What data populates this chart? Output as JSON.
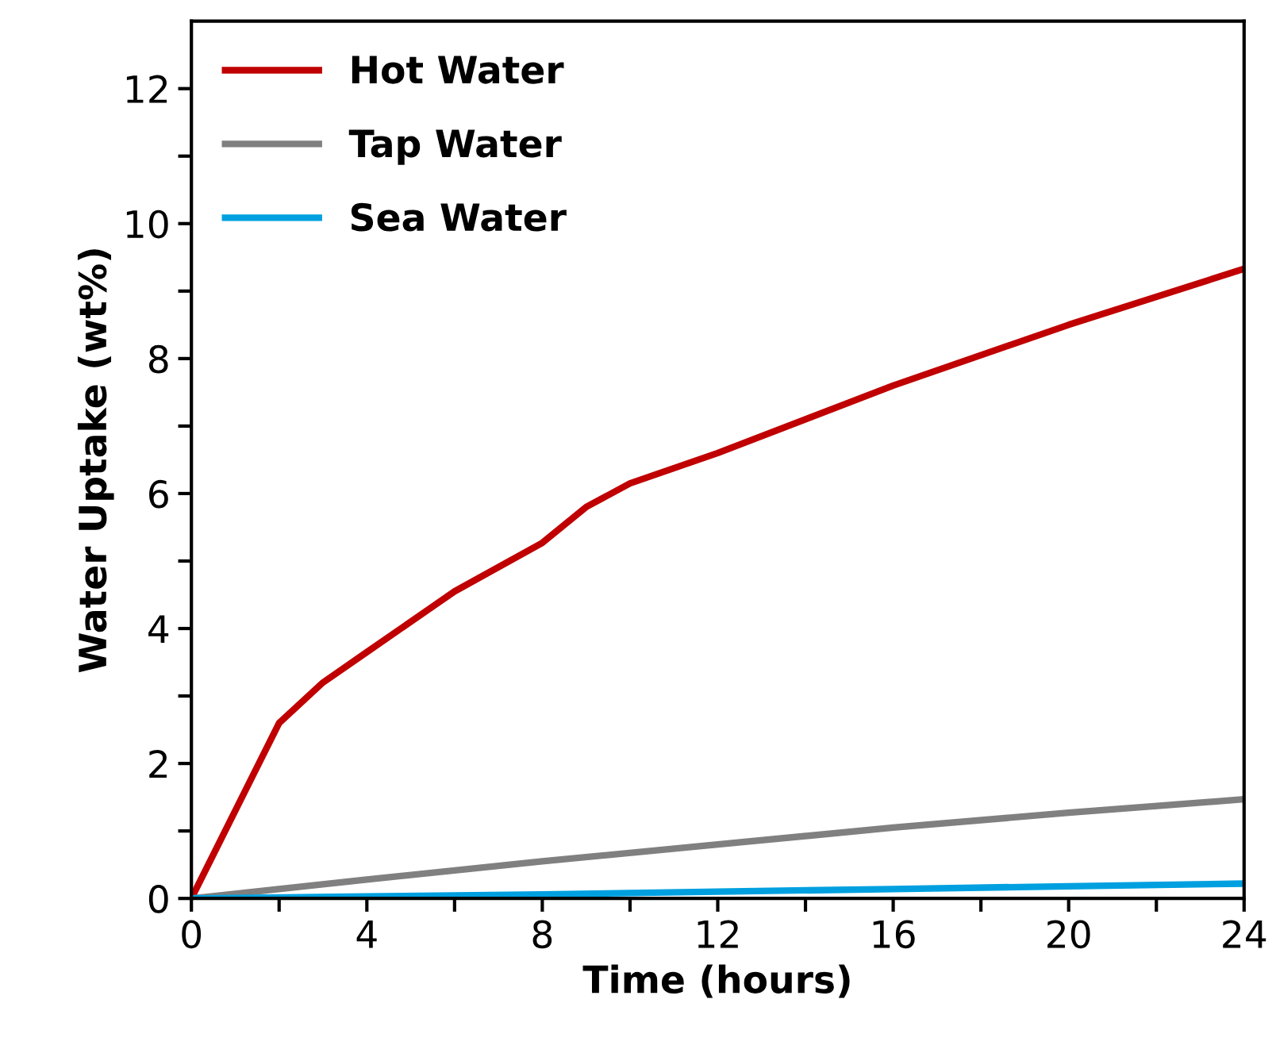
{
  "chart_data": {
    "type": "line",
    "xlabel": "Time (hours)",
    "ylabel": "Water Uptake (wt%)",
    "xlim": [
      0,
      24
    ],
    "ylim": [
      0,
      13
    ],
    "xticks": [
      0,
      {
        "value": 2,
        "label": null
      },
      4,
      {
        "value": 6,
        "label": null
      },
      8,
      {
        "value": 10,
        "label": null
      },
      12,
      {
        "value": 14,
        "label": null
      },
      16,
      {
        "value": 18,
        "label": null
      },
      20,
      {
        "value": 22,
        "label": null
      },
      24
    ],
    "yticks": [
      0,
      {
        "value": 1,
        "label": null
      },
      2,
      {
        "value": 3,
        "label": null
      },
      4,
      {
        "value": 5,
        "label": null
      },
      6,
      {
        "value": 7,
        "label": null
      },
      8,
      {
        "value": 9,
        "label": null
      },
      10,
      {
        "value": 11,
        "label": null
      },
      12
    ],
    "legend": "top left",
    "grid": false,
    "marker": "none",
    "line_style": "solid",
    "series": [
      {
        "name": "Hot Water",
        "color": "#c00000",
        "x": [
          0,
          1,
          2,
          3,
          4,
          6,
          8,
          9,
          10,
          12,
          16,
          20,
          24
        ],
        "values": [
          0,
          1.3,
          2.6,
          3.2,
          3.65,
          4.55,
          5.27,
          5.8,
          6.15,
          6.6,
          7.6,
          8.5,
          9.33
        ]
      },
      {
        "name": "Tap Water",
        "color": "#808080",
        "x": [
          0,
          4,
          8,
          12,
          16,
          20,
          24
        ],
        "values": [
          0,
          0.28,
          0.55,
          0.8,
          1.05,
          1.27,
          1.47
        ]
      },
      {
        "name": "Sea Water",
        "color": "#00a0e0",
        "x": [
          0,
          4,
          8,
          12,
          16,
          20,
          24
        ],
        "values": [
          0,
          0.03,
          0.06,
          0.1,
          0.14,
          0.18,
          0.22
        ]
      }
    ]
  }
}
